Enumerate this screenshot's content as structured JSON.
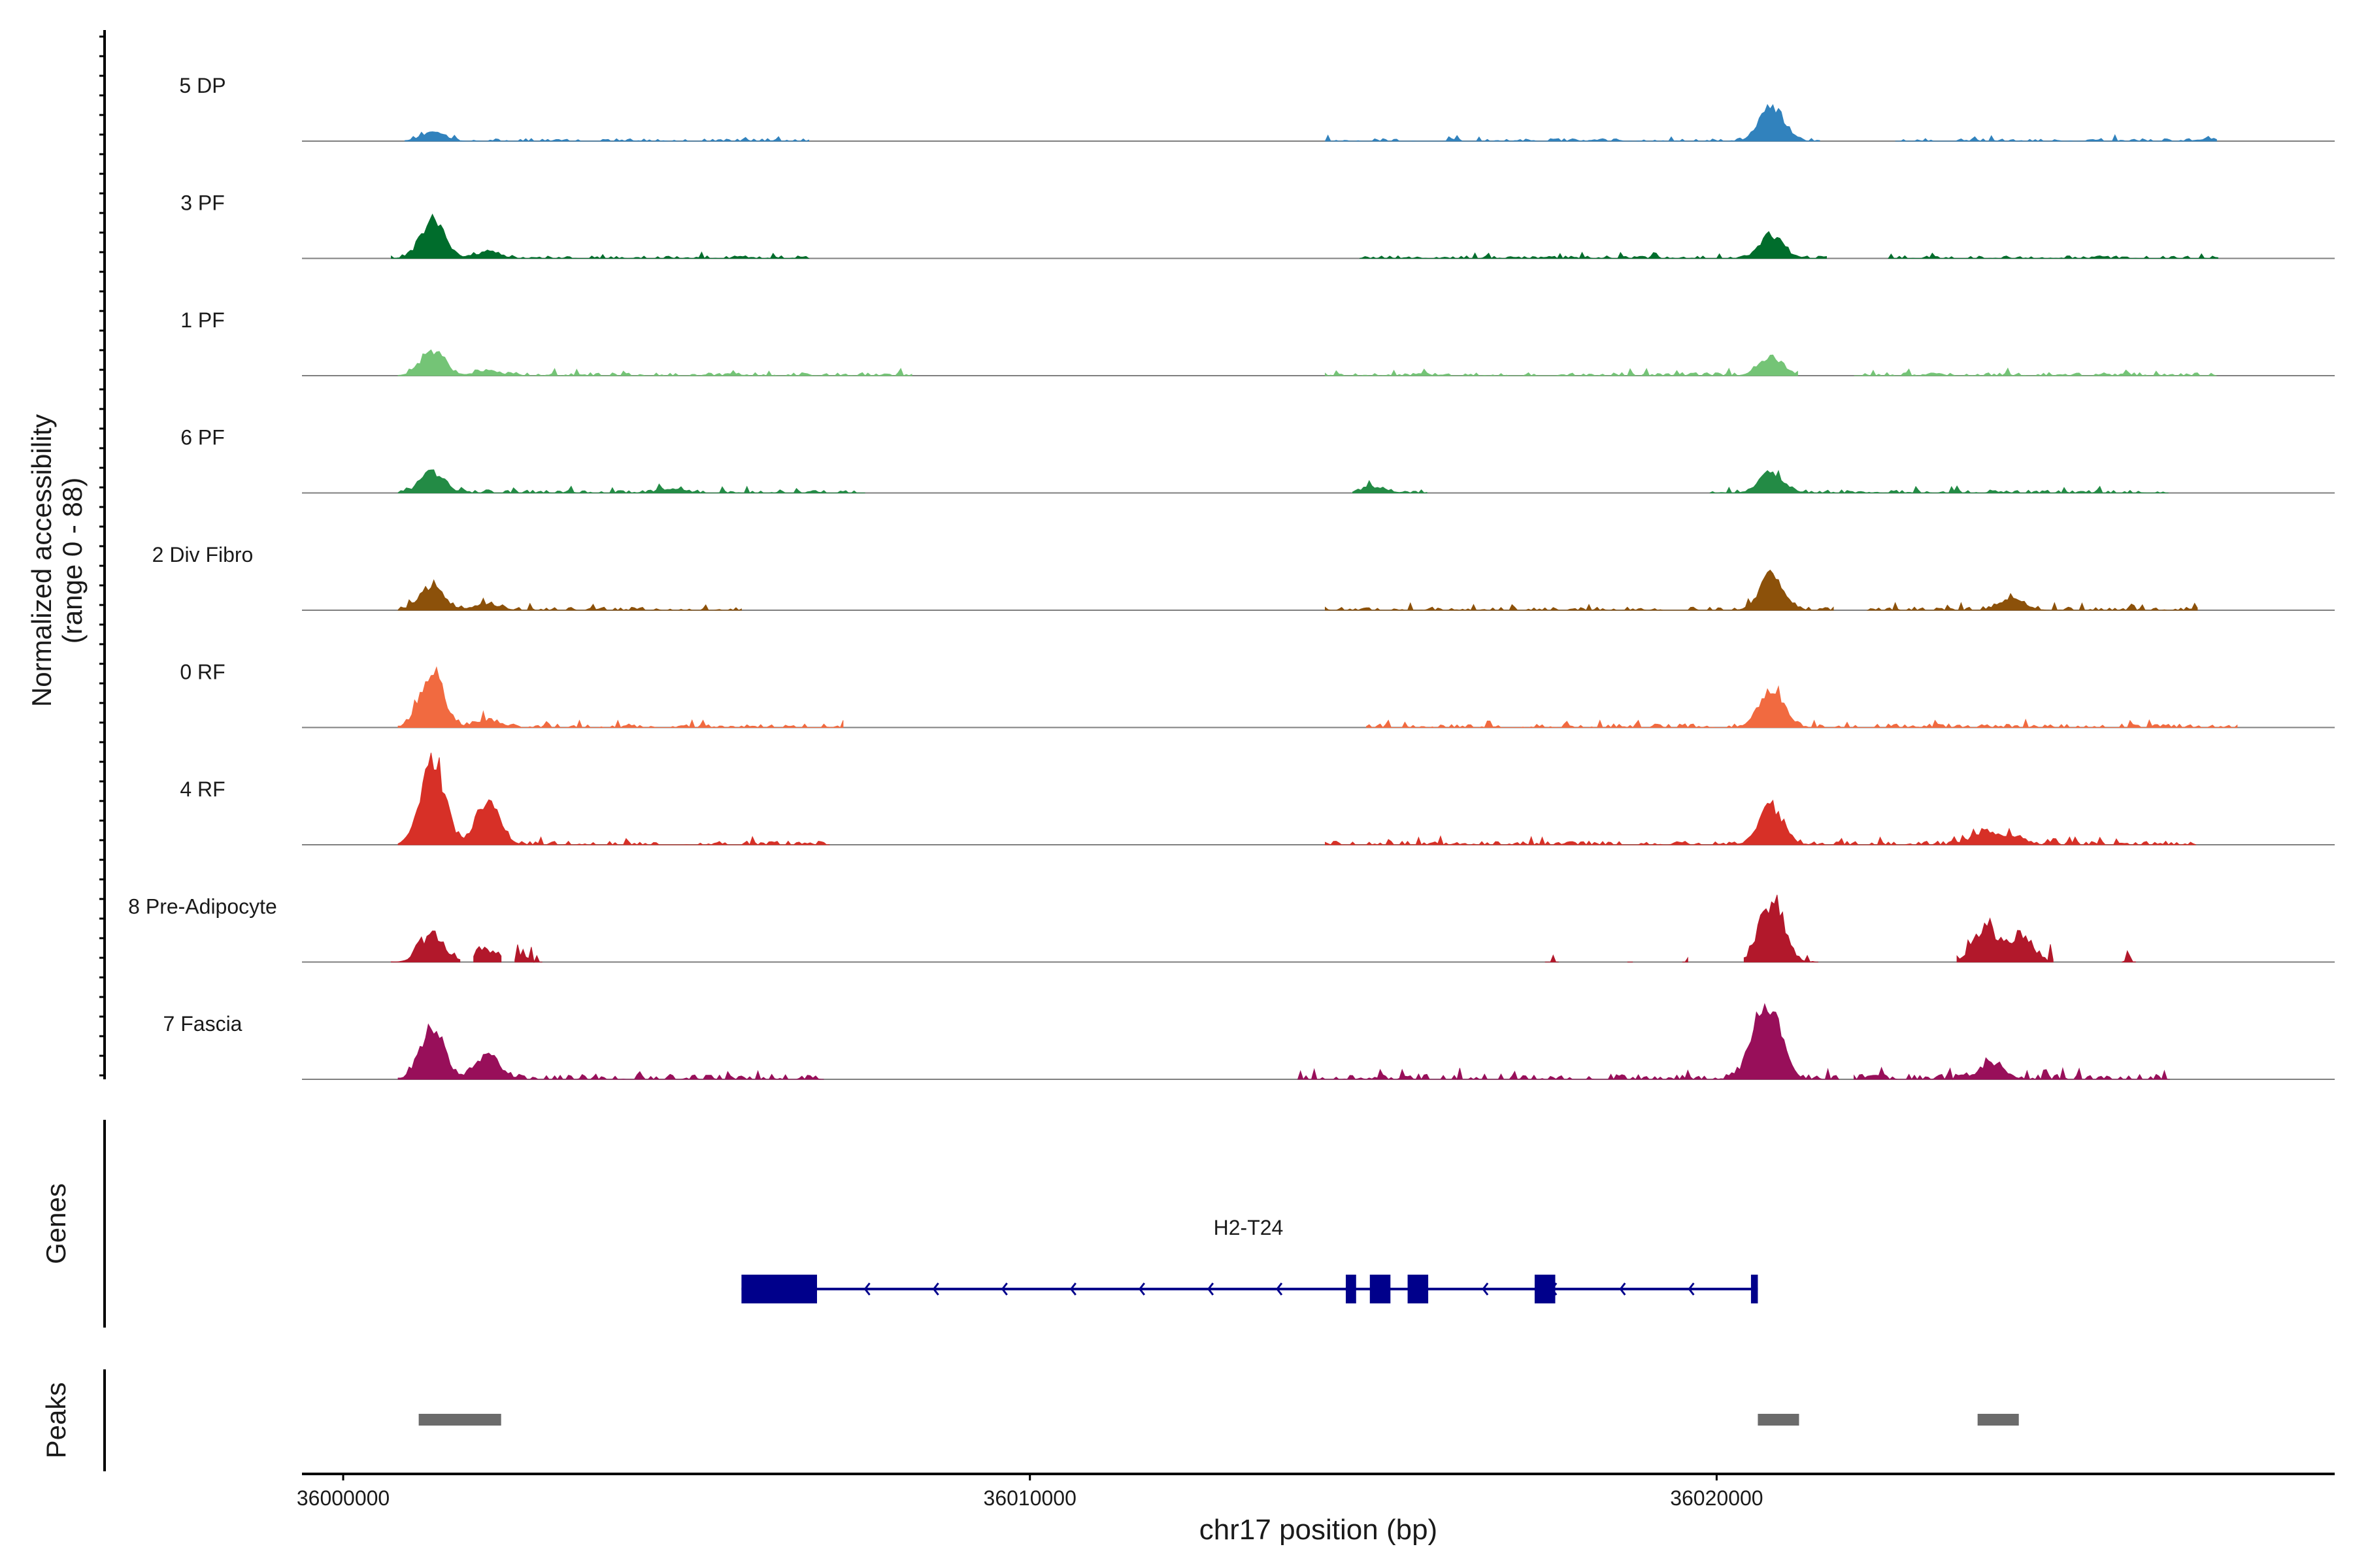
{
  "chart_data": {
    "type": "area",
    "title": "",
    "ylabel": "Normalized accessibility",
    "ylabel_range": "(range 0 - 88)",
    "ylim": [
      0,
      88
    ],
    "xlabel": "chr17 position (bp)",
    "xlim": [
      35999400,
      36029000
    ],
    "x_ticks": [
      36000000,
      36010000,
      36020000
    ],
    "x_tick_labels": [
      "36000000",
      "36010000",
      "36020000"
    ],
    "tracks": [
      {
        "name": "5 DP",
        "color": "#3182BD",
        "peaks": [
          [
            36001300,
            8
          ],
          [
            36020800,
            34
          ],
          [
            36027200,
            2
          ]
        ],
        "segments": [
          [
            36000900,
            36006800
          ],
          [
            36014300,
            36021500
          ],
          [
            36022600,
            36027300
          ]
        ],
        "noise": 2.5
      },
      {
        "name": "3 PF",
        "color": "#006D2C",
        "peaks": [
          [
            36001300,
            36
          ],
          [
            36002100,
            6
          ],
          [
            36020800,
            22
          ]
        ],
        "segments": [
          [
            36000700,
            36006800
          ],
          [
            36014800,
            36021600
          ],
          [
            36022500,
            36027300
          ]
        ],
        "noise": 2.5
      },
      {
        "name": "1 PF",
        "color": "#74C476",
        "peaks": [
          [
            36001300,
            24
          ],
          [
            36002100,
            5
          ],
          [
            36020800,
            18
          ]
        ],
        "segments": [
          [
            36000800,
            36008300
          ],
          [
            36014300,
            36021200
          ],
          [
            36022000,
            36027300
          ]
        ],
        "noise": 3
      },
      {
        "name": "6 PF",
        "color": "#238B45",
        "peaks": [
          [
            36001300,
            20
          ],
          [
            36004800,
            4
          ],
          [
            36015000,
            5
          ],
          [
            36020800,
            20
          ]
        ],
        "segments": [
          [
            36000800,
            36007600
          ],
          [
            36014700,
            36015800
          ],
          [
            36019900,
            36026600
          ]
        ],
        "noise": 3
      },
      {
        "name": "2 Div Fibro",
        "color": "#8C510A",
        "peaks": [
          [
            36001300,
            24
          ],
          [
            36002100,
            6
          ],
          [
            36020800,
            34
          ],
          [
            36024300,
            12
          ]
        ],
        "segments": [
          [
            36000800,
            36005800
          ],
          [
            36014300,
            36021700
          ],
          [
            36022200,
            36027000
          ]
        ],
        "noise": 3
      },
      {
        "name": "0 RF",
        "color": "#F16A40",
        "peaks": [
          [
            36001300,
            52
          ],
          [
            36002100,
            7
          ],
          [
            36020800,
            38
          ]
        ],
        "segments": [
          [
            36000800,
            36007300
          ],
          [
            36014900,
            36027600
          ]
        ],
        "noise": 3.5
      },
      {
        "name": "4 RF",
        "color": "#D73027",
        "peaks": [
          [
            36001300,
            88
          ],
          [
            36002100,
            40
          ],
          [
            36020800,
            36
          ],
          [
            36023900,
            12
          ],
          [
            36024300,
            8
          ]
        ],
        "segments": [
          [
            36000800,
            36007100
          ],
          [
            36014300,
            36027000
          ]
        ],
        "noise": 3.5
      },
      {
        "name": "8 Pre-Adipocyte",
        "color": "#B2182B",
        "peaks": [
          [
            36001300,
            26
          ],
          [
            36002100,
            11
          ],
          [
            36020800,
            58
          ],
          [
            36023900,
            32
          ],
          [
            36024400,
            22
          ]
        ],
        "segments": [
          [
            36000700,
            36001700
          ],
          [
            36001900,
            36002300
          ],
          [
            36002500,
            36002900
          ],
          [
            36017500,
            36017700
          ],
          [
            36018700,
            36018800
          ],
          [
            36019500,
            36019600
          ],
          [
            36020400,
            36021500
          ],
          [
            36023500,
            36024900
          ],
          [
            36025900,
            36026100
          ]
        ],
        "noise": 7
      },
      {
        "name": "7 Fascia",
        "color": "#980F5A",
        "peaks": [
          [
            36001300,
            52
          ],
          [
            36002100,
            24
          ],
          [
            36020800,
            60
          ],
          [
            36020600,
            28
          ],
          [
            36024000,
            16
          ]
        ],
        "segments": [
          [
            36000800,
            36007000
          ],
          [
            36013900,
            36021800
          ],
          [
            36022000,
            36026600
          ]
        ],
        "noise": 5
      }
    ],
    "genes_label": "Genes",
    "gene": {
      "name": "H2-T24",
      "strand": "-",
      "start": 36005800,
      "end": 36020600,
      "exons": [
        [
          36005800,
          36006900
        ],
        [
          36014600,
          36014750
        ],
        [
          36014950,
          36015250
        ],
        [
          36015500,
          36015800
        ],
        [
          36017350,
          36017650
        ],
        [
          36020500,
          36020600
        ]
      ]
    },
    "peaks_label": "Peaks",
    "peak_regions": [
      [
        36001100,
        36002300
      ],
      [
        36020600,
        36021200
      ],
      [
        36023800,
        36024400
      ]
    ]
  }
}
